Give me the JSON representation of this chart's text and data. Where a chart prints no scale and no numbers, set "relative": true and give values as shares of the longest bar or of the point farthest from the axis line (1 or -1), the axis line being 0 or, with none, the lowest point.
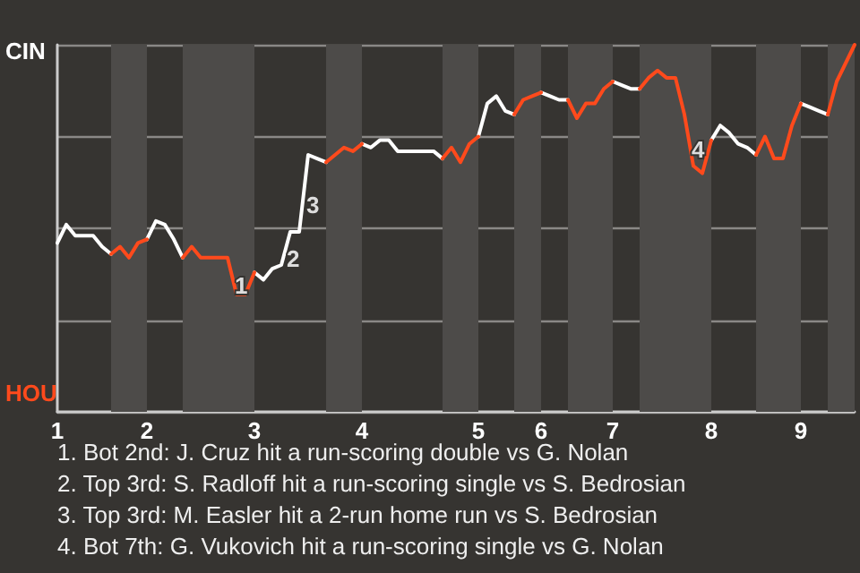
{
  "chart_data": {
    "type": "line",
    "relative": true,
    "grid": "y",
    "legend": false,
    "marker": "none",
    "line_style": "solid",
    "categories": [
      "1",
      null,
      null,
      null,
      null,
      null,
      null,
      null,
      null,
      null,
      "2",
      null,
      null,
      null,
      null,
      null,
      null,
      null,
      null,
      null,
      null,
      null,
      "3",
      null,
      null,
      null,
      null,
      null,
      null,
      null,
      null,
      null,
      null,
      null,
      "4",
      null,
      null,
      null,
      null,
      null,
      null,
      null,
      null,
      null,
      null,
      null,
      null,
      "5",
      null,
      null,
      null,
      null,
      null,
      null,
      "6",
      null,
      null,
      null,
      null,
      null,
      null,
      null,
      "7",
      null,
      null,
      null,
      null,
      null,
      null,
      null,
      null,
      null,
      null,
      "8",
      null,
      null,
      null,
      null,
      null,
      null,
      null,
      null,
      null,
      "9",
      null,
      null,
      null,
      null,
      null,
      null
    ],
    "series": [
      {
        "name": "CIN",
        "color": "#ffffff",
        "values": [
          0.46,
          0.51,
          0.48,
          0.48,
          0.48,
          0.45,
          0.43,
          null,
          null,
          null,
          0.47,
          0.52,
          0.51,
          0.47,
          0.42,
          null,
          null,
          null,
          null,
          null,
          null,
          null,
          0.38,
          0.36,
          0.39,
          0.4,
          0.49,
          0.49,
          0.7,
          0.69,
          0.68,
          null,
          null,
          null,
          0.73,
          0.72,
          0.74,
          0.74,
          0.71,
          0.71,
          0.71,
          0.71,
          0.71,
          0.69,
          null,
          null,
          null,
          0.75,
          0.84,
          0.86,
          0.82,
          0.81,
          null,
          null,
          0.87,
          0.86,
          0.85,
          0.85,
          null,
          null,
          null,
          null,
          0.9,
          0.89,
          0.88,
          0.88,
          null,
          null,
          null,
          null,
          null,
          null,
          null,
          0.74,
          0.78,
          0.76,
          0.73,
          0.72,
          0.7,
          null,
          null,
          null,
          null,
          0.84,
          0.83,
          0.82,
          0.81,
          null,
          null,
          null
        ]
      },
      {
        "name": "HOU",
        "color": "#ff4a1c",
        "values": [
          null,
          null,
          null,
          null,
          null,
          null,
          0.43,
          0.45,
          0.42,
          0.46,
          0.47,
          null,
          null,
          null,
          0.42,
          0.45,
          0.42,
          0.42,
          0.42,
          0.42,
          0.32,
          0.32,
          0.38,
          null,
          null,
          null,
          null,
          null,
          null,
          null,
          0.68,
          0.7,
          0.72,
          0.71,
          0.73,
          null,
          null,
          null,
          null,
          null,
          null,
          null,
          null,
          0.69,
          0.72,
          0.68,
          0.73,
          0.75,
          null,
          null,
          null,
          0.81,
          0.85,
          0.86,
          0.87,
          null,
          null,
          0.85,
          0.8,
          0.84,
          0.84,
          0.88,
          0.9,
          null,
          null,
          0.88,
          0.91,
          0.93,
          0.91,
          0.91,
          0.81,
          0.67,
          0.65,
          0.74,
          null,
          null,
          null,
          null,
          0.7,
          0.75,
          0.69,
          0.69,
          0.78,
          0.84,
          null,
          null,
          0.81,
          0.9,
          0.95,
          1.0
        ]
      }
    ],
    "annotations": [
      "1",
      "2",
      "3",
      "4",
      "1. Bot 2nd: J. Cruz hit a run-scoring double vs G. Nolan",
      "2. Top 3rd: S. Radloff hit a run-scoring single vs S. Bedrosian",
      "3. Top 3rd: M. Easler hit a 2-run home run vs S. Bedrosian",
      "4. Bot 7th: G. Vukovich hit a run-scoring single vs G. Nolan"
    ]
  }
}
